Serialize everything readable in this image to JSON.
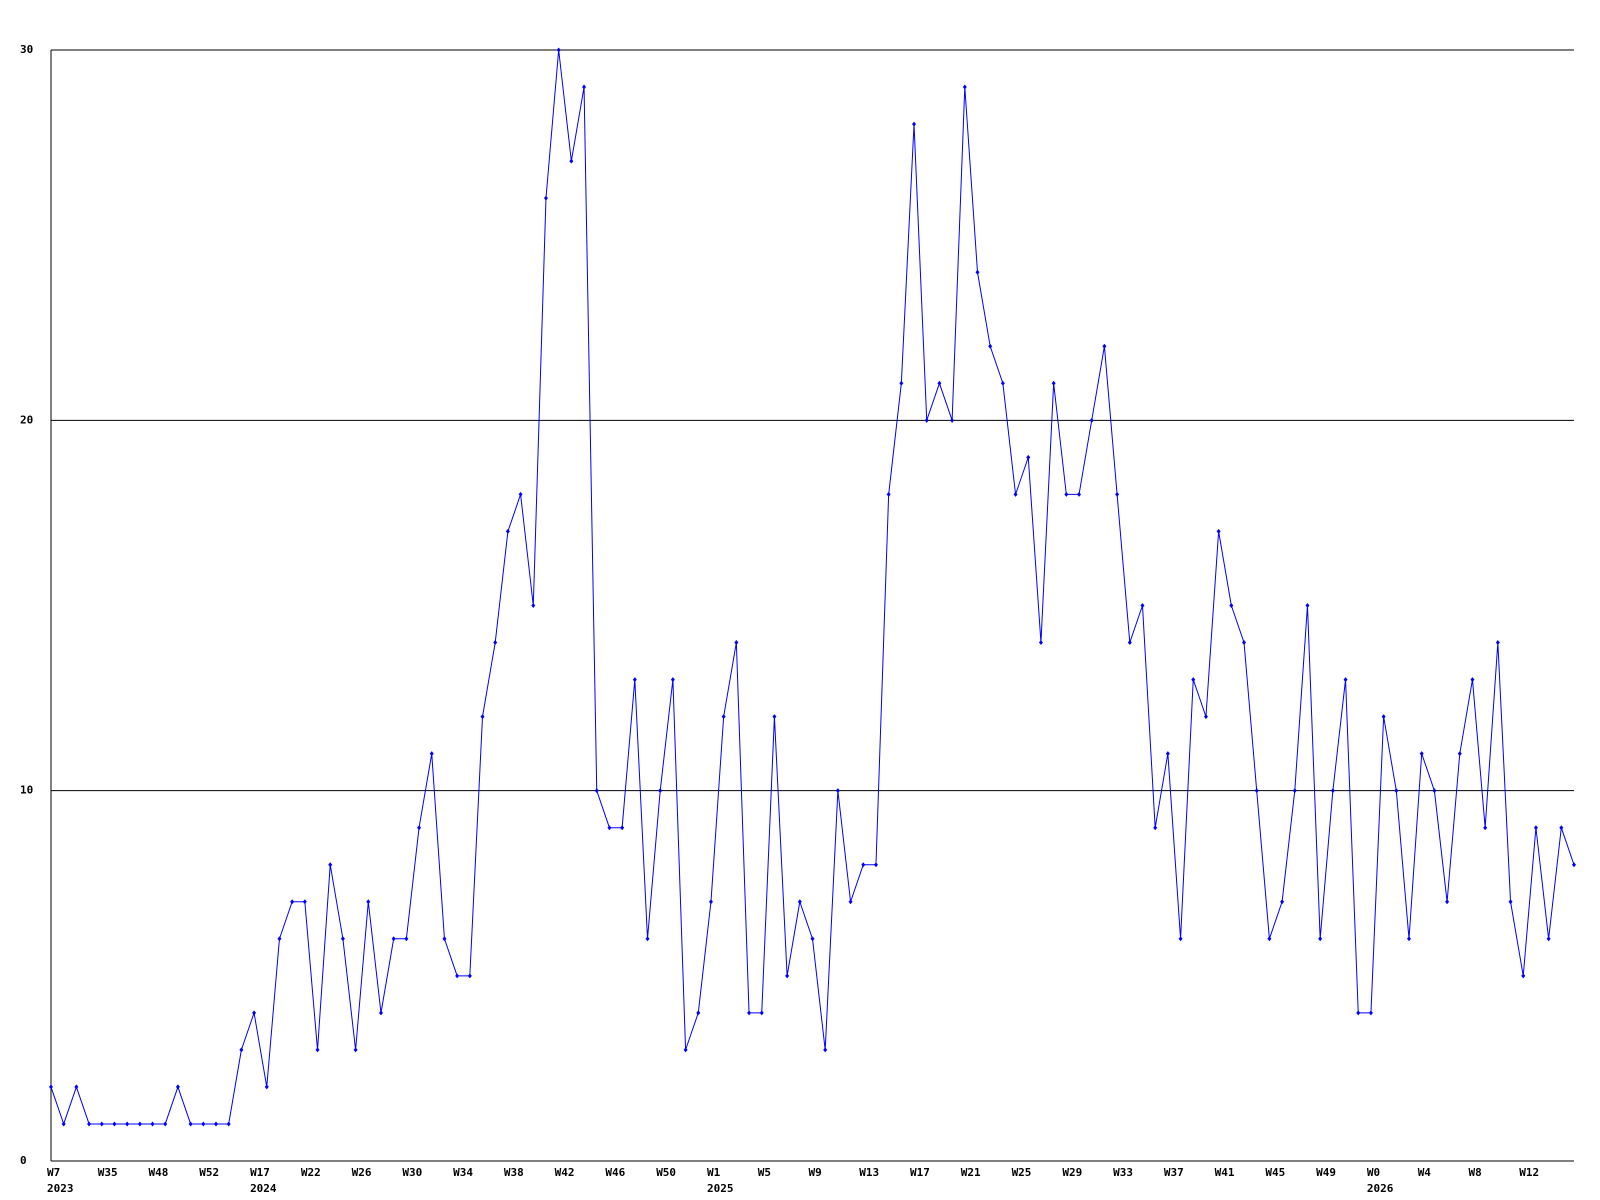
{
  "chart_data": {
    "type": "line",
    "categories": [
      "W7",
      null,
      null,
      null,
      "W35",
      null,
      null,
      null,
      "W48",
      null,
      null,
      null,
      "W52",
      null,
      null,
      null,
      "W17",
      null,
      null,
      null,
      "W22",
      null,
      null,
      null,
      "W26",
      null,
      null,
      null,
      "W30",
      null,
      null,
      null,
      "W34",
      null,
      null,
      null,
      "W38",
      null,
      null,
      null,
      "W42",
      null,
      null,
      null,
      "W46",
      null,
      null,
      null,
      "W50",
      null,
      null,
      null,
      "W1",
      null,
      null,
      null,
      "W5",
      null,
      null,
      null,
      "W9",
      null,
      null,
      null,
      "W13",
      null,
      null,
      null,
      "W17",
      null,
      null,
      null,
      "W21",
      null,
      null,
      null,
      "W25",
      null,
      null,
      null,
      "W29",
      null,
      null,
      null,
      "W33",
      null,
      null,
      null,
      "W37",
      null,
      null,
      null,
      "W41",
      null,
      null,
      null,
      "W45",
      null,
      null,
      null,
      "W49",
      null,
      null,
      null,
      "W0",
      null,
      null,
      null,
      "W4",
      null,
      null,
      null,
      "W8",
      null,
      null,
      null,
      "W12",
      null,
      null,
      null,
      null
    ],
    "years": [
      "2023",
      null,
      null,
      null,
      null,
      null,
      null,
      null,
      null,
      null,
      null,
      null,
      null,
      null,
      null,
      null,
      "2024",
      null,
      null,
      null,
      null,
      null,
      null,
      null,
      null,
      null,
      null,
      null,
      null,
      null,
      null,
      null,
      null,
      null,
      null,
      null,
      null,
      null,
      null,
      null,
      null,
      null,
      null,
      null,
      null,
      null,
      null,
      null,
      null,
      null,
      null,
      null,
      "2025",
      null,
      null,
      null,
      null,
      null,
      null,
      null,
      null,
      null,
      null,
      null,
      null,
      null,
      null,
      null,
      null,
      null,
      null,
      null,
      null,
      null,
      null,
      null,
      null,
      null,
      null,
      null,
      null,
      null,
      null,
      null,
      null,
      null,
      null,
      null,
      null,
      null,
      null,
      null,
      null,
      null,
      null,
      null,
      null,
      null,
      null,
      null,
      null,
      null,
      null,
      null,
      "2026",
      null,
      null,
      null,
      null,
      null,
      null,
      null,
      null,
      null,
      null,
      null,
      null,
      null,
      null,
      null
    ],
    "series": [
      {
        "color": "#0000ff",
        "values": [
          2,
          1,
          2,
          1,
          1,
          1,
          1,
          1,
          1,
          1,
          2,
          1,
          1,
          1,
          1,
          3,
          4,
          2,
          6,
          7,
          7,
          3,
          8,
          6,
          3,
          7,
          4,
          6,
          6,
          9,
          11,
          6,
          5,
          5,
          12,
          14,
          17,
          18,
          15,
          26,
          30,
          27,
          29,
          10,
          9,
          9,
          13,
          6,
          10,
          13,
          3,
          4,
          7,
          12,
          14,
          4,
          4,
          12,
          5,
          7,
          6,
          3,
          10,
          7,
          8,
          8,
          18,
          21,
          28,
          20,
          21,
          20,
          29,
          24,
          22,
          21,
          18,
          19,
          14,
          21,
          18,
          18,
          20,
          22,
          18,
          14,
          15,
          9,
          11,
          6,
          13,
          12,
          17,
          15,
          14,
          10,
          6,
          7,
          10,
          15,
          6,
          10,
          13,
          4,
          4,
          12,
          10,
          6,
          11,
          10,
          7,
          11,
          13,
          9,
          14,
          7,
          5,
          9,
          6,
          9,
          8
        ]
      }
    ],
    "ylim": [
      0,
      30
    ],
    "yticks": [
      0,
      10,
      20,
      30
    ],
    "grid": true
  }
}
